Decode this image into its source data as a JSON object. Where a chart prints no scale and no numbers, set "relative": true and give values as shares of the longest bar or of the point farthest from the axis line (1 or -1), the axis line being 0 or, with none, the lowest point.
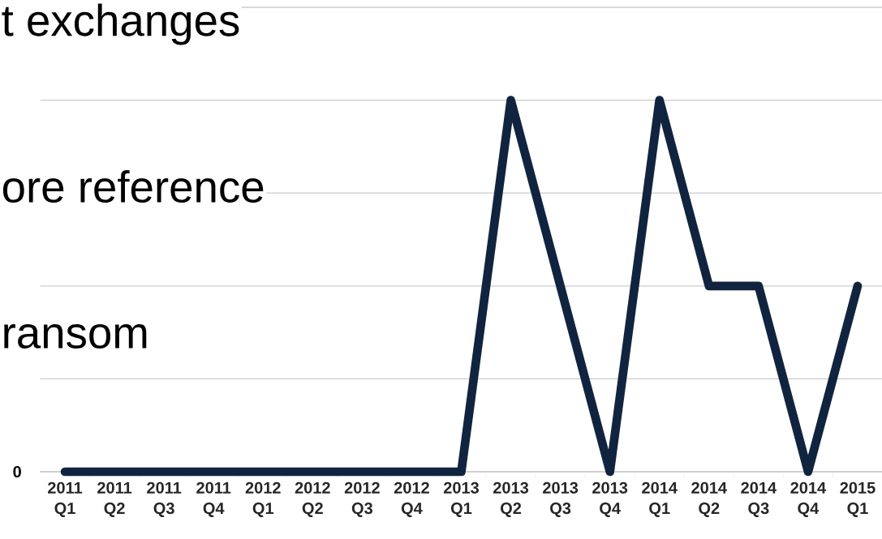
{
  "chart_data": {
    "type": "line",
    "relative": true,
    "annotations": [
      "t exchanges",
      "ore reference",
      "ransom",
      "0"
    ],
    "categories": [
      "2011 Q1",
      "2011 Q2",
      "2011 Q3",
      "2011 Q4",
      "2012 Q1",
      "2012 Q2",
      "2012 Q3",
      "2012 Q4",
      "2013 Q1",
      "2013 Q2",
      "2013 Q3",
      "2013 Q4",
      "2014 Q1",
      "2014 Q2",
      "2014 Q3",
      "2014 Q4",
      "2015 Q1"
    ],
    "series": [
      {
        "color": "#11243f",
        "values": [
          0,
          0,
          0,
          0,
          0,
          0,
          0,
          0,
          0,
          1,
          0.5,
          0,
          1,
          0.5,
          0.5,
          0,
          0.5
        ]
      }
    ],
    "grid": "y",
    "marker": "none",
    "line_style": "solid"
  }
}
